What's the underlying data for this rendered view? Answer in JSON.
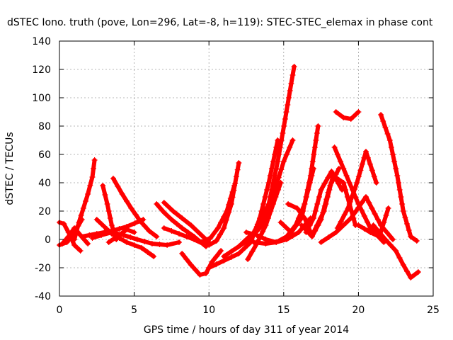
{
  "chart_data": {
    "type": "scatter",
    "title": "dSTEC Iono. truth (pove, Lon=296, Lat=-8, h=119): STEC-STEC_elemax in phase cont",
    "xlabel": "GPS time / hours of day 311 of year 2014",
    "ylabel": "dSTEC  / TECUs",
    "xlim": [
      0,
      25
    ],
    "ylim": [
      -40,
      140
    ],
    "xticks": [
      0,
      5,
      10,
      15,
      20,
      25
    ],
    "yticks": [
      -40,
      -20,
      0,
      20,
      40,
      60,
      80,
      100,
      120,
      140
    ],
    "grid": true,
    "marker": "plus",
    "color": "#ff0000",
    "series": [
      {
        "x": [
          0.0,
          0.3,
          0.6,
          1.0,
          1.4
        ],
        "y": [
          12,
          11,
          5,
          -4,
          -8
        ]
      },
      {
        "x": [
          0.0,
          0.5,
          1.0,
          1.5
        ],
        "y": [
          -4,
          -2,
          5,
          14
        ]
      },
      {
        "x": [
          0.2,
          0.6,
          1.0,
          1.4,
          1.9
        ],
        "y": [
          -3,
          2,
          8,
          3,
          -3
        ]
      },
      {
        "x": [
          1.0,
          1.3,
          1.6,
          1.9,
          2.2,
          2.35
        ],
        "y": [
          0,
          12,
          22,
          32,
          44,
          56
        ]
      },
      {
        "x": [
          1.5,
          2.5,
          3.5,
          4.5,
          5.6
        ],
        "y": [
          2,
          4,
          6,
          9,
          14
        ]
      },
      {
        "x": [
          2.5,
          3.5,
          4.5,
          5.5,
          6.3
        ],
        "y": [
          14,
          4,
          -2,
          -6,
          -12
        ]
      },
      {
        "x": [
          2.9,
          3.2,
          3.5,
          3.8
        ],
        "y": [
          38,
          25,
          10,
          0
        ]
      },
      {
        "x": [
          3.6,
          4.2,
          4.8,
          5.4,
          6.0,
          6.5
        ],
        "y": [
          43,
          32,
          22,
          13,
          6,
          2
        ]
      },
      {
        "x": [
          3.3,
          4.0,
          4.5,
          5.0
        ],
        "y": [
          -2,
          3,
          7,
          5
        ]
      },
      {
        "x": [
          2.2,
          2.8,
          3.5,
          4.3,
          5.2,
          6.2,
          7.2,
          8.0
        ],
        "y": [
          1,
          3,
          5,
          3,
          0,
          -3,
          -4,
          -2
        ]
      },
      {
        "x": [
          6.5,
          7.0,
          7.5,
          8.2,
          9.0,
          9.8
        ],
        "y": [
          25,
          19,
          14,
          8,
          2,
          -5
        ]
      },
      {
        "x": [
          7.0,
          7.6,
          8.2,
          8.8,
          9.4,
          10.0
        ],
        "y": [
          26,
          20,
          15,
          10,
          4,
          -2
        ]
      },
      {
        "x": [
          7.0,
          8.0,
          9.0,
          9.6,
          10.0,
          10.5,
          11.0,
          11.5,
          12.0
        ],
        "y": [
          8,
          4,
          0,
          -3,
          -4,
          -1,
          8,
          25,
          54
        ]
      },
      {
        "x": [
          8.2,
          8.8,
          9.4,
          9.8,
          10.2,
          10.8
        ],
        "y": [
          -10,
          -18,
          -25,
          -24,
          -16,
          -8
        ]
      },
      {
        "x": [
          9.5,
          10.1,
          10.6,
          11.2,
          11.7
        ],
        "y": [
          -2,
          1,
          8,
          20,
          38
        ]
      },
      {
        "x": [
          10.0,
          11.0,
          12.0,
          12.8,
          13.4,
          14.0,
          14.6
        ],
        "y": [
          -20,
          -15,
          -10,
          -2,
          15,
          40,
          70
        ]
      },
      {
        "x": [
          11.0,
          12.0,
          13.0,
          14.0,
          14.6,
          15.1,
          15.5,
          15.7
        ],
        "y": [
          -12,
          -5,
          5,
          25,
          55,
          85,
          110,
          122
        ]
      },
      {
        "x": [
          12.6,
          13.2,
          13.8,
          14.3,
          14.8
        ],
        "y": [
          -14,
          -3,
          10,
          25,
          40
        ]
      },
      {
        "x": [
          12.0,
          12.7,
          13.4,
          14.0,
          14.5,
          15.0,
          15.6
        ],
        "y": [
          -5,
          0,
          8,
          20,
          38,
          55,
          70
        ]
      },
      {
        "x": [
          12.5,
          13.2,
          13.8,
          14.5,
          15.2,
          16.0,
          16.8
        ],
        "y": [
          5,
          3,
          0,
          -2,
          0,
          5,
          15
        ]
      },
      {
        "x": [
          13.0,
          13.8,
          14.5,
          15.2,
          15.8,
          16.4,
          17.0
        ],
        "y": [
          -2,
          -3,
          -2,
          2,
          10,
          25,
          50
        ]
      },
      {
        "x": [
          15.3,
          15.9,
          16.4,
          16.8
        ],
        "y": [
          25,
          22,
          15,
          5
        ]
      },
      {
        "x": [
          14.8,
          15.5,
          16.2,
          16.8,
          17.3
        ],
        "y": [
          12,
          5,
          15,
          45,
          80
        ]
      },
      {
        "x": [
          16.2,
          16.9,
          17.5,
          18.1,
          18.7
        ],
        "y": [
          10,
          2,
          14,
          38,
          50
        ]
      },
      {
        "x": [
          16.5,
          17.0,
          17.5,
          18.2,
          18.9
        ],
        "y": [
          5,
          15,
          35,
          48,
          35
        ]
      },
      {
        "x": [
          17.0,
          17.7,
          18.3,
          19.0,
          19.8
        ],
        "y": [
          5,
          20,
          45,
          40,
          10
        ]
      },
      {
        "x": [
          17.5,
          18.5,
          19.5,
          20.5,
          21.5,
          22.3
        ],
        "y": [
          -2,
          5,
          15,
          30,
          10,
          0
        ]
      },
      {
        "x": [
          18.4,
          19.2,
          20.0,
          20.8,
          21.7
        ],
        "y": [
          65,
          45,
          25,
          8,
          -2
        ]
      },
      {
        "x": [
          18.6,
          19.3,
          19.9,
          20.5,
          21.2
        ],
        "y": [
          8,
          22,
          40,
          62,
          40
        ]
      },
      {
        "x": [
          18.5,
          19.0,
          19.5,
          20.0
        ],
        "y": [
          90,
          86,
          85,
          90
        ]
      },
      {
        "x": [
          20.0,
          20.8,
          21.4,
          22.0
        ],
        "y": [
          10,
          5,
          2,
          22
        ]
      },
      {
        "x": [
          21.5,
          22.1,
          22.6,
          23.0,
          23.5,
          23.9
        ],
        "y": [
          88,
          70,
          45,
          20,
          2,
          -1
        ]
      },
      {
        "x": [
          21.0,
          21.8,
          22.5,
          23.0,
          23.5,
          24.0
        ],
        "y": [
          10,
          0,
          -8,
          -18,
          -27,
          -23
        ]
      }
    ]
  }
}
